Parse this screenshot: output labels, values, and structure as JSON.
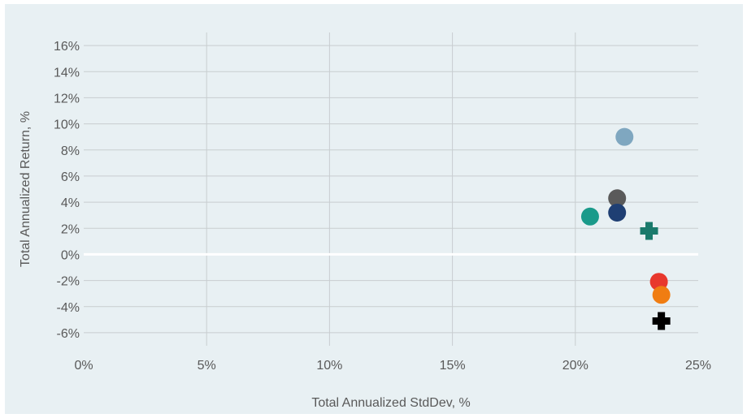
{
  "chart_data": {
    "type": "scatter",
    "xlabel": "Total Annualized StdDev, %",
    "ylabel": "Total Annualized Return, %",
    "xlim": [
      0,
      25
    ],
    "ylim": [
      -7,
      17
    ],
    "x_ticks": [
      0,
      5,
      10,
      15,
      20,
      25
    ],
    "x_tick_labels": [
      "0%",
      "5%",
      "10%",
      "15%",
      "20%",
      "25%"
    ],
    "y_ticks": [
      -6,
      -4,
      -2,
      0,
      2,
      4,
      6,
      8,
      10,
      12,
      14,
      16
    ],
    "y_tick_labels": [
      "-6%",
      "-4%",
      "-2%",
      "0%",
      "2%",
      "4%",
      "6%",
      "8%",
      "10%",
      "12%",
      "14%",
      "16%"
    ],
    "grid": true,
    "zero_line": true,
    "series": [
      {
        "marker": "circle",
        "color": "#7fa7c0",
        "x": 22.0,
        "y": 9.0
      },
      {
        "marker": "circle",
        "color": "#5a5a5a",
        "x": 21.7,
        "y": 4.3
      },
      {
        "marker": "circle",
        "color": "#1f3f73",
        "x": 21.7,
        "y": 3.2
      },
      {
        "marker": "circle",
        "color": "#1a9a8a",
        "x": 20.6,
        "y": 2.9
      },
      {
        "marker": "cross",
        "color": "#1a7a6c",
        "x": 23.0,
        "y": 1.8
      },
      {
        "marker": "circle",
        "color": "#e8382d",
        "x": 23.4,
        "y": -2.1
      },
      {
        "marker": "circle",
        "color": "#f07d12",
        "x": 23.5,
        "y": -3.1
      },
      {
        "marker": "cross",
        "color": "#000000",
        "x": 23.5,
        "y": -5.1
      }
    ]
  }
}
